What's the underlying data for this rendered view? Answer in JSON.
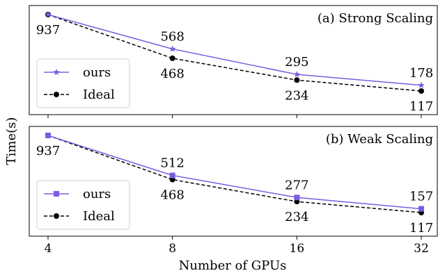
{
  "chart_data": {
    "type": "line",
    "xlabel": "Number of GPUs",
    "ylabel": "Time(s)",
    "x": [
      4,
      8,
      16,
      32
    ],
    "xscale": "log2",
    "x_tick_labels": [
      "4",
      "8",
      "16",
      "32"
    ],
    "grid": false,
    "panels": [
      {
        "title": "(a) Strong Scaling",
        "legend_placement": "lower-left",
        "series": [
          {
            "name": "ours",
            "values": [
              937,
              568,
              295,
              178
            ],
            "labels": [
              "",
              "568",
              "295",
              "178"
            ],
            "color": "#7b5ce0",
            "marker": "star",
            "linestyle": "solid"
          },
          {
            "name": "Ideal",
            "values": [
              937,
              468,
              234,
              117
            ],
            "labels": [
              "937",
              "468",
              "234",
              "117"
            ],
            "color": "#000000",
            "marker": "circle",
            "linestyle": "dashed"
          }
        ]
      },
      {
        "title": "(b) Weak Scaling",
        "legend_placement": "lower-left",
        "series": [
          {
            "name": "ours",
            "values": [
              937,
              512,
              277,
              157
            ],
            "labels": [
              "",
              "512",
              "277",
              "157"
            ],
            "color": "#7b5ce0",
            "marker": "square",
            "linestyle": "solid"
          },
          {
            "name": "Ideal",
            "values": [
              937,
              468,
              234,
              117
            ],
            "labels": [
              "937",
              "468",
              "234",
              "117"
            ],
            "color": "#000000",
            "marker": "circle",
            "linestyle": "dashed"
          }
        ]
      }
    ]
  }
}
